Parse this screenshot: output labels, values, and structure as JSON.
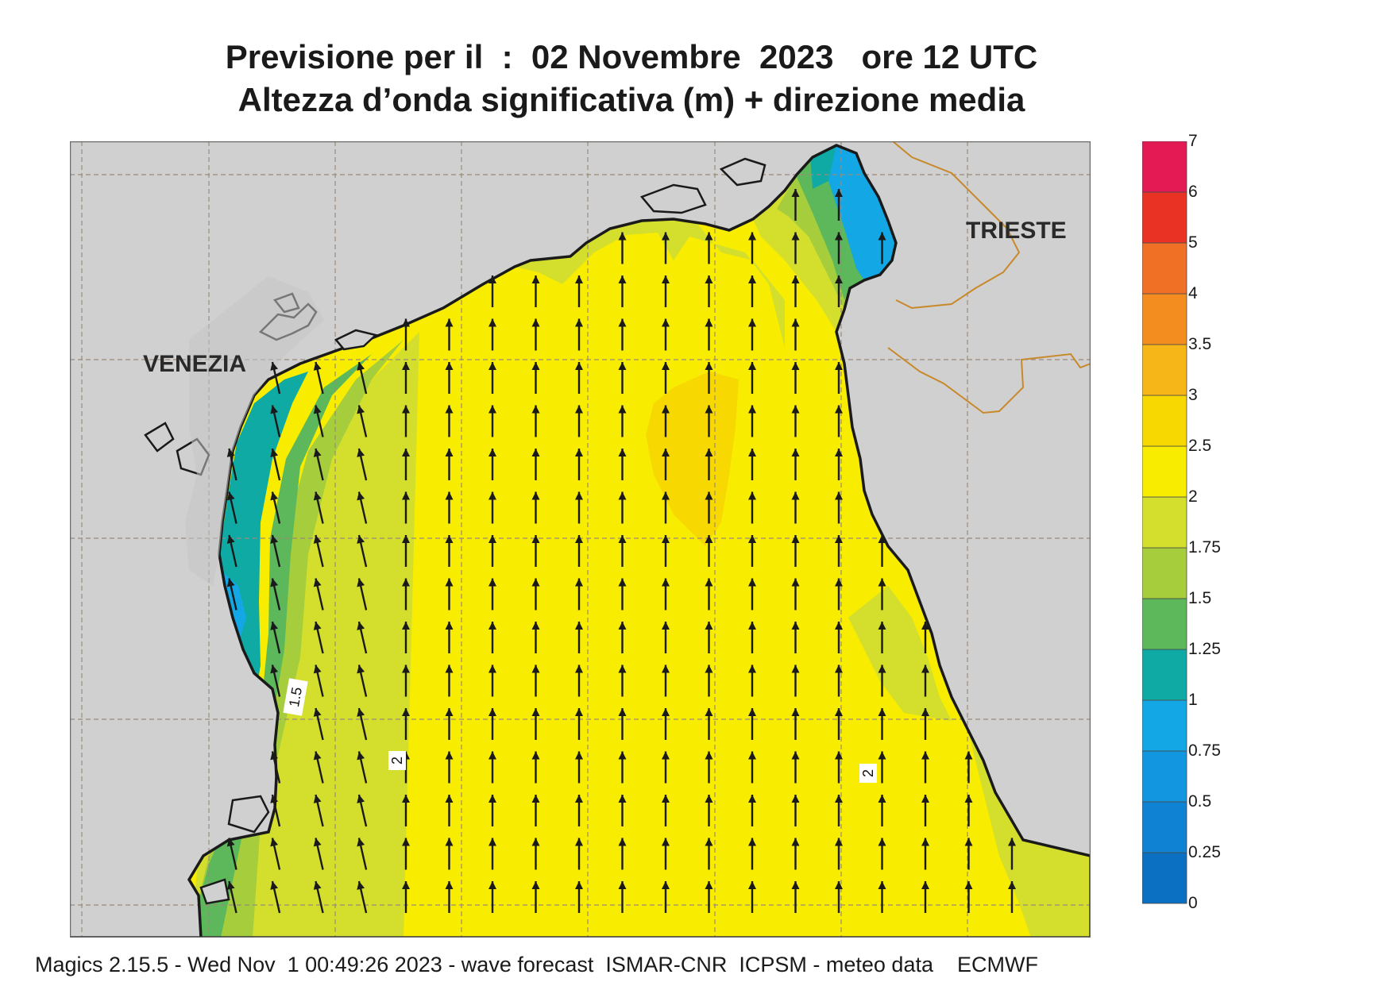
{
  "title": {
    "line1": "Previsione per il  :  02 Novembre  2023   ore 12 UTC",
    "line2": "Altezza d’onda significativa (m) + direzione media"
  },
  "places": {
    "venezia": "VENEZIA",
    "trieste": "TRIESTE"
  },
  "contour_labels": [
    "1.5",
    "2",
    "2"
  ],
  "footer": "Magics 2.15.5 - Wed Nov  1 00:49:26 2023 - wave forecast  ISMAR-CNR  ICPSM - meteo data    ECMWF",
  "legend": {
    "values": [
      "0",
      "0.25",
      "0.5",
      "0.75",
      "1",
      "1.25",
      "1.5",
      "1.75",
      "2",
      "2.5",
      "3",
      "3.5",
      "4",
      "5",
      "6",
      "7"
    ],
    "colors": [
      "#0b6fc2",
      "#0f82d3",
      "#1296e0",
      "#13a7e6",
      "#10aaa4",
      "#5cb85a",
      "#a5cd3c",
      "#d3df2c",
      "#f8ec00",
      "#f7d800",
      "#f6b617",
      "#f48d1f",
      "#f07026",
      "#ea3224",
      "#e41a54"
    ]
  },
  "colors": {
    "land": "#d0d0d0",
    "coast": "#1a1a1a",
    "arrow": "#1a1a1a",
    "grid": "#9a8a7a",
    "border": "#c8892a"
  },
  "wave_direction": "north"
}
